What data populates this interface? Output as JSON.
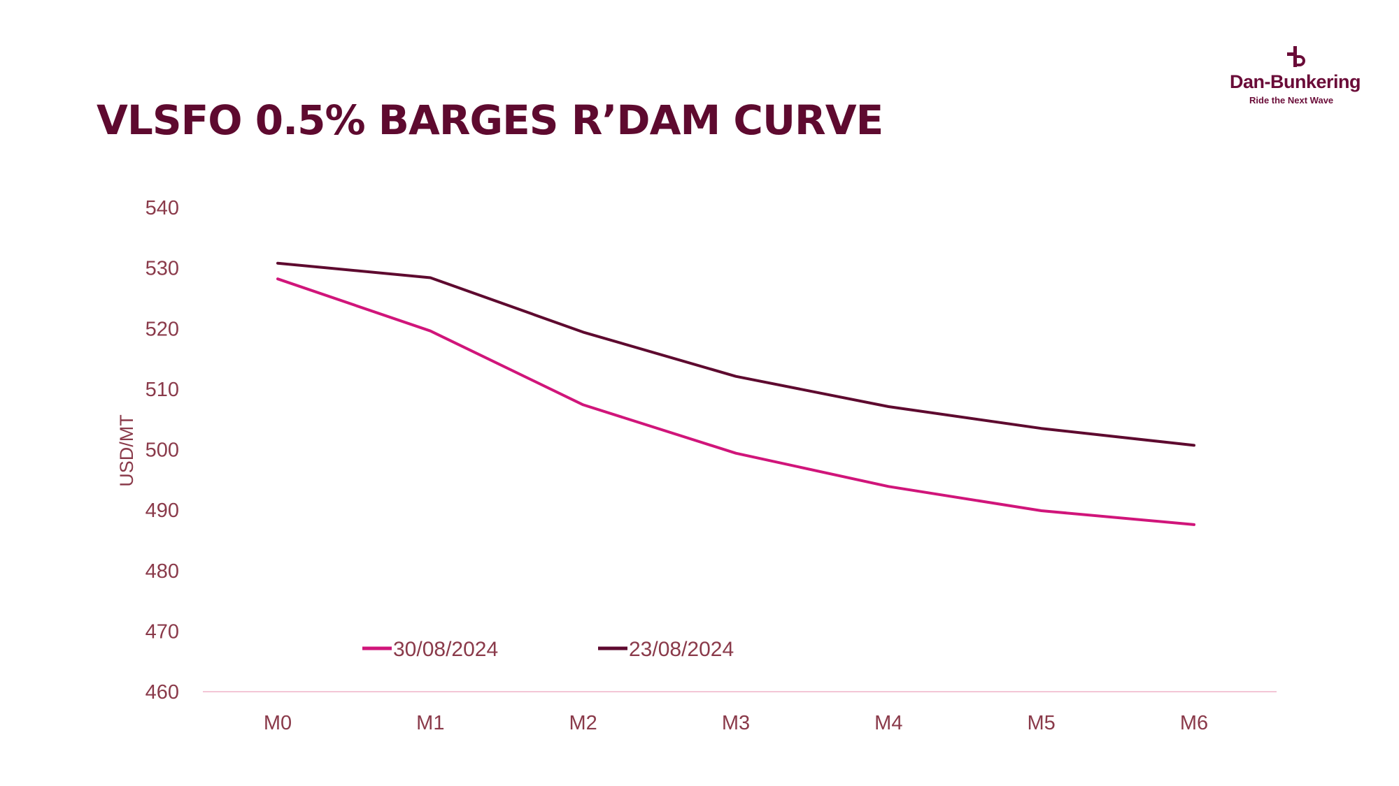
{
  "title": "VLSFO 0.5% BARGES R’DAM CURVE",
  "logo": {
    "brand": "Dan-Bunkering",
    "tagline": "Ride the Next Wave",
    "icon": "anchor-d-icon",
    "color": "#6a0c38"
  },
  "chart_data": {
    "type": "line",
    "title": "VLSFO 0.5% BARGES R’DAM CURVE",
    "xlabel": "",
    "ylabel": "USD/MT",
    "categories": [
      "M0",
      "M1",
      "M2",
      "M3",
      "M4",
      "M5",
      "M6"
    ],
    "ylim": [
      460,
      540
    ],
    "yticks": [
      "540",
      "530",
      "520",
      "510",
      "500",
      "490",
      "480",
      "470",
      "460"
    ],
    "legend_position": "bottom-left-inside",
    "series": [
      {
        "name": "30/08/2024",
        "color": "#d0157a",
        "values": [
          528.2,
          519.6,
          507.4,
          499.4,
          493.9,
          489.9,
          487.6
        ]
      },
      {
        "name": "23/08/2024",
        "color": "#5e0a2f",
        "values": [
          530.8,
          528.4,
          519.4,
          512.1,
          507.1,
          503.5,
          500.7
        ]
      }
    ]
  }
}
